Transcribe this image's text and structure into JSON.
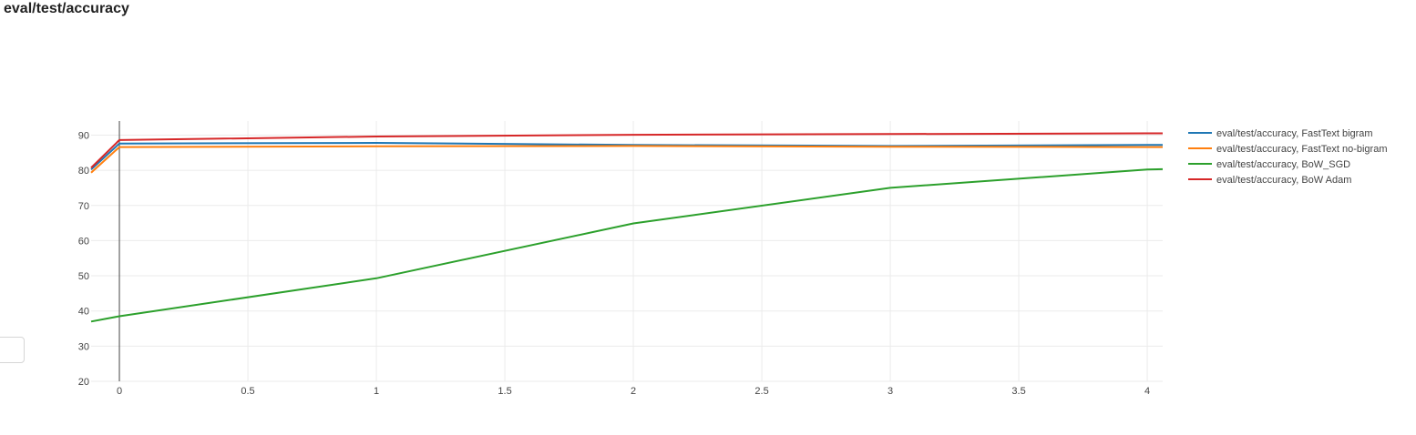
{
  "page": {
    "title": "eval/test/accuracy"
  },
  "chart_data": {
    "type": "line",
    "title": "eval/test/accuracy",
    "xlabel": "",
    "ylabel": "",
    "xlim": [
      -0.11,
      4.06
    ],
    "ylim": [
      20,
      94
    ],
    "x_ticks": [
      0,
      0.5,
      1,
      1.5,
      2,
      2.5,
      3,
      3.5,
      4
    ],
    "y_ticks": [
      20,
      30,
      40,
      50,
      60,
      70,
      80,
      90
    ],
    "x_tick_labels": [
      "0",
      "0.5",
      "1",
      "1.5",
      "2",
      "2.5",
      "3",
      "3.5",
      "4"
    ],
    "y_tick_labels": [
      "20",
      "30",
      "40",
      "50",
      "60",
      "70",
      "80",
      "90"
    ],
    "grid": true,
    "legend_position": "right",
    "series": [
      {
        "name": "eval/test/accuracy, FastText bigram",
        "color": "#1f77b4",
        "x": [
          -0.11,
          0,
          1,
          2,
          3,
          4,
          4.06
        ],
        "y": [
          80.2,
          87.6,
          87.8,
          87.2,
          86.9,
          87.2,
          87.2
        ]
      },
      {
        "name": "eval/test/accuracy, FastText no-bigram",
        "color": "#ff7f0e",
        "x": [
          -0.11,
          0,
          1,
          2,
          3,
          4,
          4.06
        ],
        "y": [
          79.3,
          86.6,
          86.8,
          86.9,
          86.7,
          86.6,
          86.6
        ]
      },
      {
        "name": "eval/test/accuracy, BoW_SGD",
        "color": "#2ca02c",
        "x": [
          -0.11,
          0,
          1,
          2,
          3,
          4,
          4.06
        ],
        "y": [
          37.0,
          38.5,
          49.3,
          64.9,
          75.0,
          80.2,
          80.3
        ]
      },
      {
        "name": "eval/test/accuracy, BoW Adam",
        "color": "#d62728",
        "x": [
          -0.11,
          0,
          1,
          2,
          3,
          4,
          4.06
        ],
        "y": [
          80.7,
          88.6,
          89.6,
          90.1,
          90.3,
          90.5,
          90.5
        ]
      }
    ]
  }
}
